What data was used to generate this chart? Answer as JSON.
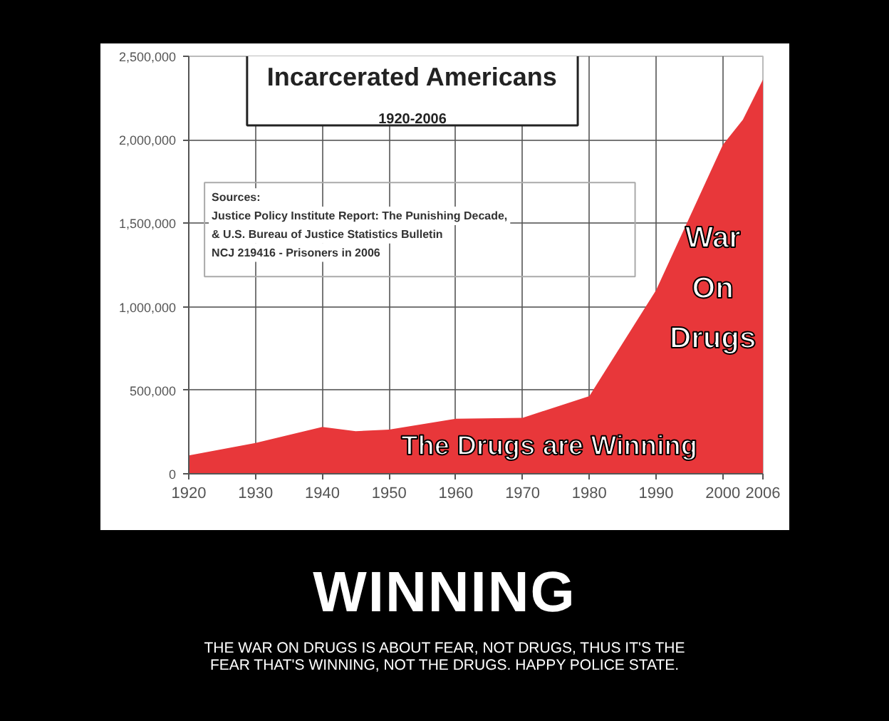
{
  "chart_data": {
    "type": "area",
    "title": "Incarcerated Americans",
    "subtitle": "1920-2006",
    "x": [
      1920,
      1930,
      1940,
      1945,
      1950,
      1960,
      1970,
      1980,
      1990,
      2000,
      2003,
      2006
    ],
    "values": [
      110000,
      185000,
      280000,
      255000,
      265000,
      330000,
      335000,
      465000,
      1100000,
      1970000,
      2120000,
      2360000
    ],
    "color": "#e8373a",
    "xlim": [
      1920,
      2006
    ],
    "xticks": [
      1920,
      1930,
      1940,
      1950,
      1960,
      1970,
      1980,
      1990,
      2000,
      2006
    ],
    "ylim": [
      0,
      2500000
    ],
    "yticks": [
      {
        "value": 0,
        "label": "0"
      },
      {
        "value": 500000,
        "label": "500,000"
      },
      {
        "value": 1000000,
        "label": "1,000,000"
      },
      {
        "value": 1500000,
        "label": "1,500,000"
      },
      {
        "value": 2000000,
        "label": "2,000,000"
      },
      {
        "value": 2500000,
        "label": "2,500,000"
      }
    ],
    "grid": true,
    "annotations": [
      "Sources:\nJustice Policy Institute Report: The Punishing Decade,\n& U.S. Bureau of Justice Statistics Bulletin\nNCJ 219416 - Prisoners in 2006",
      "War\nOn\nDrugs",
      "The Drugs are Winning",
      "WINNING",
      "THE WAR ON DRUGS IS ABOUT FEAR, NOT DRUGS, THUS IT'S THE\nFEAR THAT'S WINNING, NOT THE DRUGS. HAPPY POLICE STATE."
    ]
  }
}
